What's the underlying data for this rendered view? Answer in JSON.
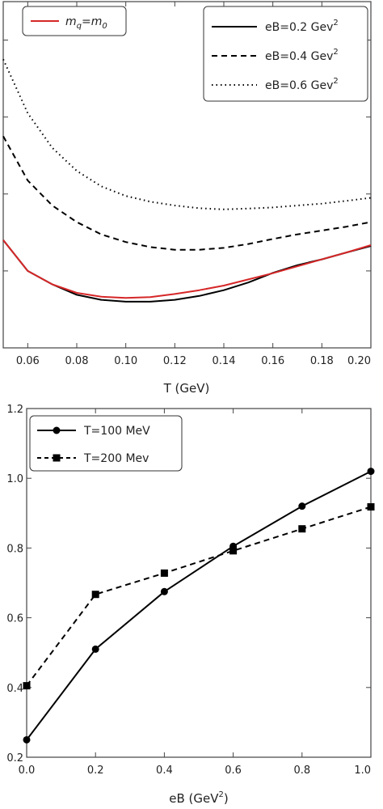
{
  "chart_data": [
    {
      "type": "line",
      "xlabel": "T (GeV)",
      "ylabel": "",
      "xlim": [
        0.05,
        0.2
      ],
      "ylim": [
        0.4,
        1.3
      ],
      "xticks": [
        "0.06",
        "0.08",
        "0.10",
        "0.12",
        "0.14",
        "0.16",
        "0.18",
        "0.20"
      ],
      "yticks": [
        "0.4",
        "0.6",
        "0.8",
        "1.0",
        "1.2"
      ],
      "grid": false,
      "legend_left": {
        "placement": "top-left",
        "entries": [
          {
            "label_main": "m",
            "label_sub1": "q",
            "label_eq": "=m",
            "label_sub2": "0",
            "color": "#d62728",
            "dash": "solid"
          }
        ]
      },
      "legend_right": {
        "placement": "top-right",
        "entries": [
          {
            "label": "eB=0.2 Gev",
            "sup": "2",
            "color": "#000000",
            "dash": "solid"
          },
          {
            "label": "eB=0.4 Gev",
            "sup": "2",
            "color": "#000000",
            "dash": "dashed"
          },
          {
            "label": "eB=0.6 Gev",
            "sup": "2",
            "color": "#000000",
            "dash": "dotted"
          }
        ]
      },
      "series": [
        {
          "color": "#000000",
          "dash": "solid",
          "x": [
            0.05,
            0.06,
            0.07,
            0.08,
            0.09,
            0.1,
            0.11,
            0.12,
            0.13,
            0.14,
            0.15,
            0.16,
            0.17,
            0.18,
            0.19,
            0.2
          ],
          "y": [
            0.68,
            0.6,
            0.565,
            0.538,
            0.525,
            0.52,
            0.52,
            0.525,
            0.535,
            0.55,
            0.57,
            0.595,
            0.615,
            0.63,
            0.648,
            0.665
          ]
        },
        {
          "color": "#000000",
          "dash": "dashed",
          "x": [
            0.05,
            0.06,
            0.07,
            0.08,
            0.09,
            0.1,
            0.11,
            0.12,
            0.13,
            0.14,
            0.15,
            0.16,
            0.17,
            0.18,
            0.19,
            0.2
          ],
          "y": [
            0.95,
            0.835,
            0.77,
            0.727,
            0.695,
            0.675,
            0.662,
            0.655,
            0.655,
            0.66,
            0.67,
            0.683,
            0.695,
            0.705,
            0.715,
            0.727
          ]
        },
        {
          "color": "#000000",
          "dash": "dotted",
          "x": [
            0.05,
            0.06,
            0.07,
            0.08,
            0.09,
            0.1,
            0.11,
            0.12,
            0.13,
            0.14,
            0.15,
            0.16,
            0.17,
            0.18,
            0.19,
            0.2
          ],
          "y": [
            1.15,
            1.01,
            0.92,
            0.86,
            0.82,
            0.795,
            0.78,
            0.77,
            0.763,
            0.76,
            0.762,
            0.765,
            0.77,
            0.775,
            0.782,
            0.79
          ]
        },
        {
          "color": "#d62728",
          "dash": "solid",
          "x": [
            0.05,
            0.06,
            0.07,
            0.08,
            0.09,
            0.1,
            0.11,
            0.12,
            0.13,
            0.14,
            0.15,
            0.16,
            0.17,
            0.18,
            0.19,
            0.2
          ],
          "y": [
            0.68,
            0.6,
            0.565,
            0.543,
            0.533,
            0.53,
            0.532,
            0.54,
            0.55,
            0.562,
            0.578,
            0.594,
            0.612,
            0.63,
            0.648,
            0.667
          ]
        }
      ]
    },
    {
      "type": "line",
      "xlabel": "eB (GeV",
      "xlabel_sup": "2",
      "xlabel_close": ")",
      "ylabel": "",
      "xlim": [
        0,
        1
      ],
      "ylim": [
        0.2,
        1.2
      ],
      "xticks": [
        "0.0",
        "0.2",
        "0.4",
        "0.6",
        "0.8",
        "1.0"
      ],
      "yticks": [
        "0.2",
        "0.4",
        "0.6",
        "0.8",
        "1.0",
        "1.2"
      ],
      "grid": false,
      "legend": {
        "placement": "top-left",
        "entries": [
          {
            "label": "T=100 MeV",
            "marker": "circle",
            "dash": "solid"
          },
          {
            "label": "T=200 Mev",
            "marker": "square",
            "dash": "dashed"
          }
        ]
      },
      "series": [
        {
          "name": "T=100 MeV",
          "marker": "circle",
          "dash": "solid",
          "x": [
            0.0,
            0.2,
            0.4,
            0.6,
            0.8,
            1.0
          ],
          "y": [
            0.25,
            0.51,
            0.675,
            0.805,
            0.92,
            1.02
          ]
        },
        {
          "name": "T=200 Mev",
          "marker": "square",
          "dash": "dashed",
          "x": [
            0.0,
            0.2,
            0.4,
            0.6,
            0.8,
            1.0
          ],
          "y": [
            0.405,
            0.667,
            0.728,
            0.792,
            0.855,
            0.918
          ]
        }
      ]
    }
  ]
}
